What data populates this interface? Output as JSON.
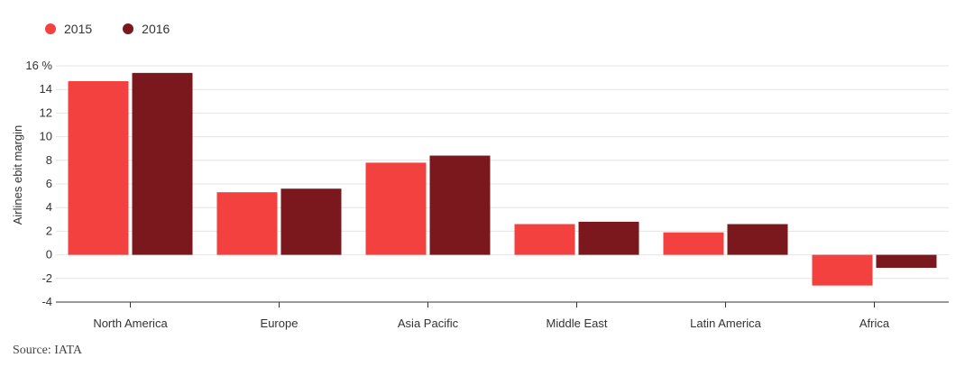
{
  "chart_data": {
    "type": "bar",
    "categories": [
      "North America",
      "Europe",
      "Asia Pacific",
      "Middle East",
      "Latin America",
      "Africa"
    ],
    "series": [
      {
        "name": "2015",
        "values": [
          14.7,
          5.3,
          7.8,
          2.6,
          1.9,
          -2.6
        ],
        "color": "#f2413e"
      },
      {
        "name": "2016",
        "values": [
          15.4,
          5.6,
          8.4,
          2.8,
          2.6,
          -1.1
        ],
        "color": "#7b181e"
      }
    ],
    "title": "",
    "xlabel": "",
    "ylabel": "Airlines ebit margin",
    "ylim": [
      -4,
      16
    ],
    "yticks": [
      -4,
      -2,
      0,
      2,
      4,
      6,
      8,
      10,
      12,
      14,
      16
    ],
    "ytick_labels": [
      "-4",
      "-2",
      "0",
      "2",
      "4",
      "6",
      "8",
      "10",
      "12",
      "14",
      "16 %"
    ],
    "grid": true,
    "legend_position": "top-left"
  },
  "source": "Source: IATA"
}
